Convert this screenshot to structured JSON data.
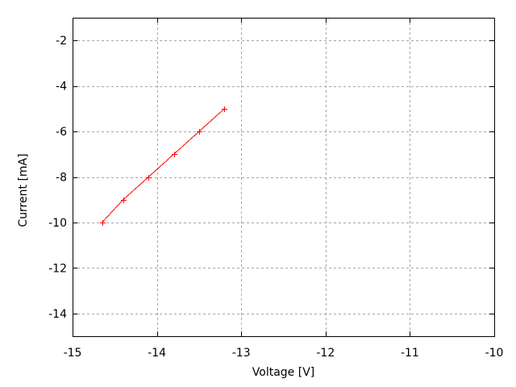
{
  "chart_data": {
    "type": "line",
    "xlabel": "Voltage [V]",
    "ylabel": "Current [mA]",
    "xlim": [
      -15,
      -10
    ],
    "ylim": [
      -15,
      -1
    ],
    "xticks": [
      -15,
      -14,
      -13,
      -12,
      -11,
      -10
    ],
    "yticks": [
      -14,
      -12,
      -10,
      -8,
      -6,
      -4,
      -2
    ],
    "grid": true,
    "legend": "none",
    "background": "#ffffff",
    "axis_color": "#000000",
    "grid_color": "#a6a6a6",
    "series": [
      {
        "color": "#ff0000",
        "marker": "plus",
        "points": [
          {
            "x": -14.65,
            "y": -10
          },
          {
            "x": -14.4,
            "y": -9
          },
          {
            "x": -14.1,
            "y": -8
          },
          {
            "x": -13.8,
            "y": -7
          },
          {
            "x": -13.5,
            "y": -6
          },
          {
            "x": -13.2,
            "y": -5
          }
        ]
      }
    ]
  }
}
